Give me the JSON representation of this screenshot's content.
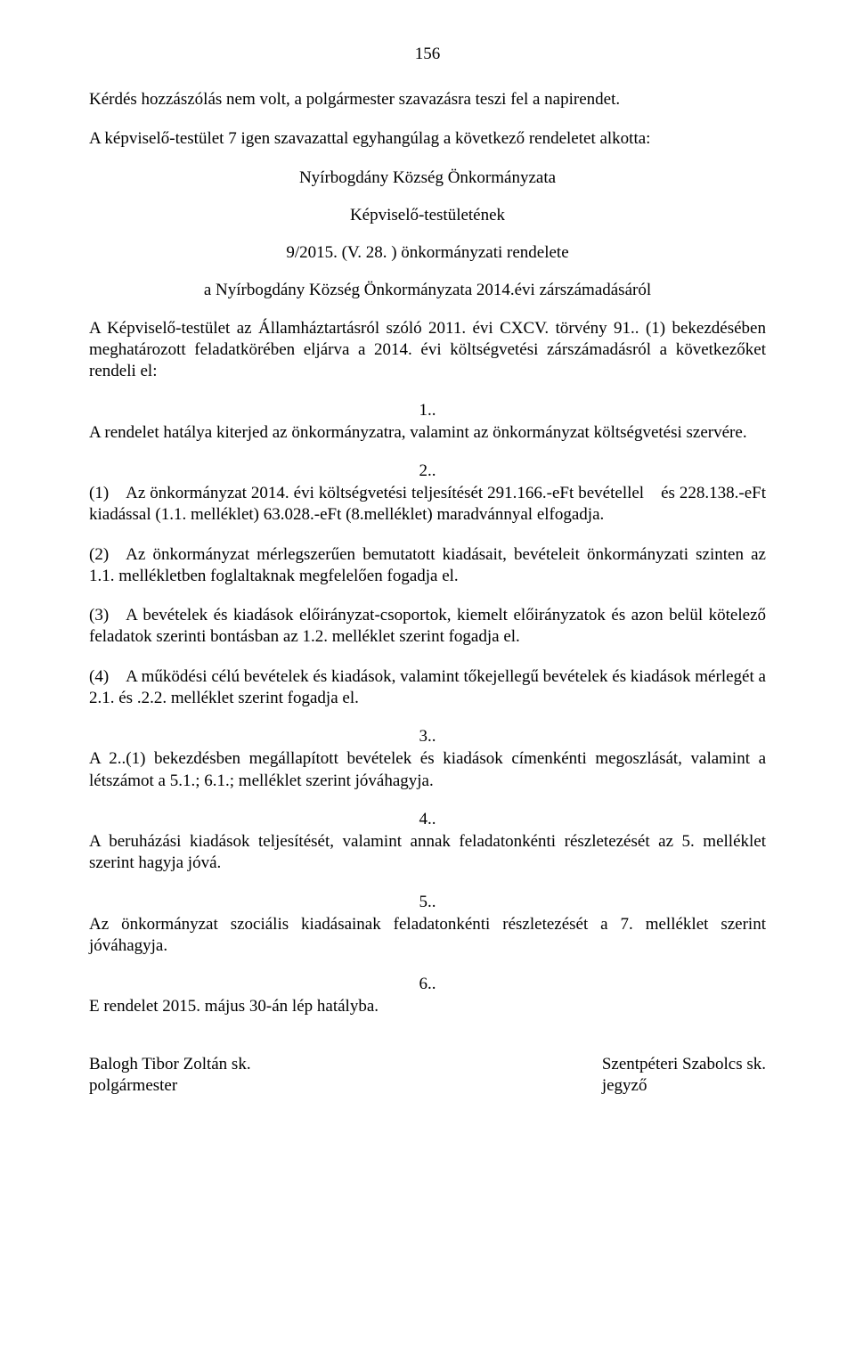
{
  "page_number": "156",
  "p1": "Kérdés hozzászólás nem volt, a polgármester szavazásra teszi fel a napirendet.",
  "p2": "A képviselő-testület  7 igen szavazattal egyhangúlag a következő rendeletet alkotta:",
  "center_lines": {
    "l1": "Nyírbogdány Község Önkormányzata",
    "l2": "Képviselő-testületének",
    "l3": "9/2015. (V. 28. ) önkormányzati rendelete",
    "l4": "a Nyírbogdány Község Önkormányzata 2014.évi  zárszámadásáról"
  },
  "p3": "A Képviselő-testület az Államháztartásról szóló 2011. évi CXCV. törvény 91.. (1) bekezdésében meghatározott feladatkörében eljárva a 2014. évi költségvetési zárszámadásról a következőket rendeli el:",
  "s1_no": "1..",
  "s1_text": "A rendelet hatálya kiterjed az önkormányzatra, valamint az önkormányzat költségvetési szervére.",
  "s2_no": "2..",
  "s2_1": "(1) Az önkormányzat 2014. évi költségvetési teljesítését 291.166.-eFt bevétellel és 228.138.-eFt kiadással  (1.1. melléklet) 63.028.-eFt (8.melléklet) maradvánnyal elfogadja.",
  "s2_2": "(2) Az önkormányzat mérlegszerűen bemutatott kiadásait, bevételeit önkormányzati szinten  az 1.1. mellékletben  foglaltaknak megfelelően fogadja el.",
  "s2_3": "(3) A bevételek és kiadások előirányzat-csoportok, kiemelt előirányzatok és azon belül kötelező feladatok szerinti bontásban az 1.2. melléklet szerint fogadja el.",
  "s2_4": "(4) A működési célú bevételek és kiadások, valamint tőkejellegű bevételek és kiadások mérlegét a 2.1. és .2.2. melléklet szerint fogadja el.",
  "s3_no": "3..",
  "s3_text": "A 2..(1) bekezdésben megállapított bevételek és kiadások címenkénti megoszlását, valamint a létszámot a 5.1.; 6.1.; melléklet szerint jóváhagyja.",
  "s4_no": "4..",
  "s4_text": "A  beruházási kiadások teljesítését, valamint annak feladatonkénti részletezését az 5. melléklet szerint hagyja jóvá.",
  "s5_no": "5..",
  "s5_text": "Az önkormányzat szociális kiadásainak feladatonkénti részletezését a 7. melléklet szerint jóváhagyja.",
  "s6_no": "6..",
  "s6_text": "E rendelet 2015. május 30-án lép hatályba.",
  "sign": {
    "left_name": "Balogh Tibor Zoltán sk.",
    "left_title": "polgármester",
    "right_name": "Szentpéteri Szabolcs sk.",
    "right_title": "jegyző"
  }
}
